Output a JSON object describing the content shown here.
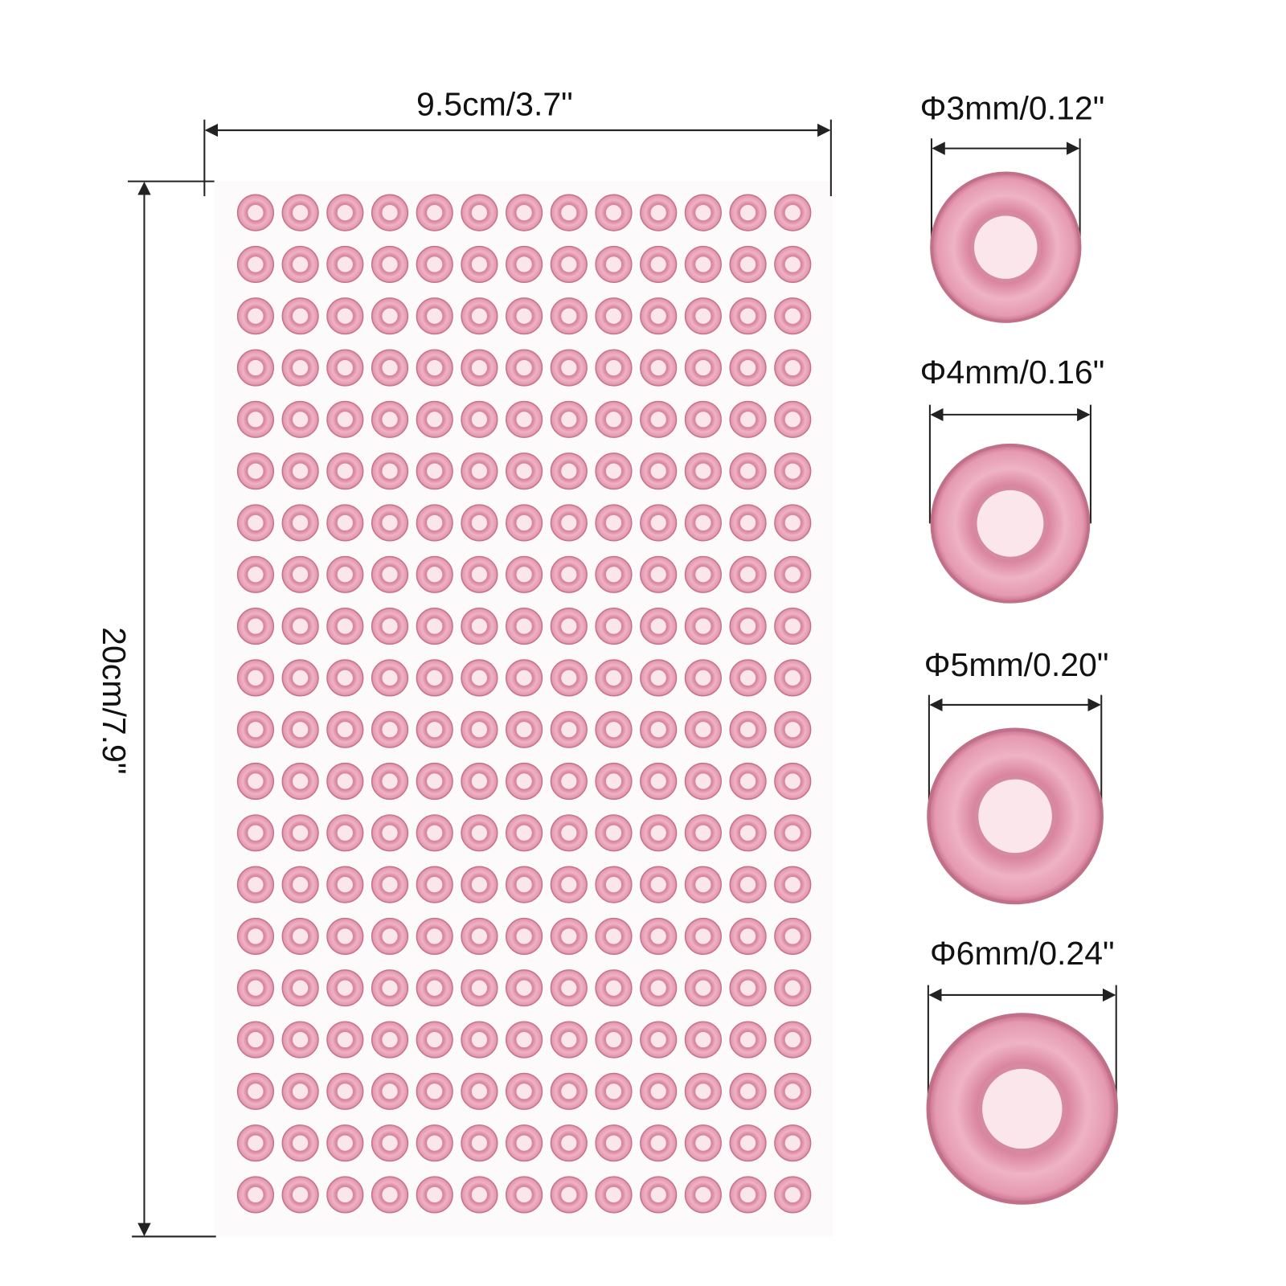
{
  "sheet": {
    "width_label": "9.5cm/3.7\"",
    "height_label": "20cm/7.9\""
  },
  "sizes": [
    {
      "label": "Φ3mm/0.12\""
    },
    {
      "label": "Φ4mm/0.16\""
    },
    {
      "label": "Φ5mm/0.20\""
    },
    {
      "label": "Φ6mm/0.24\""
    }
  ]
}
